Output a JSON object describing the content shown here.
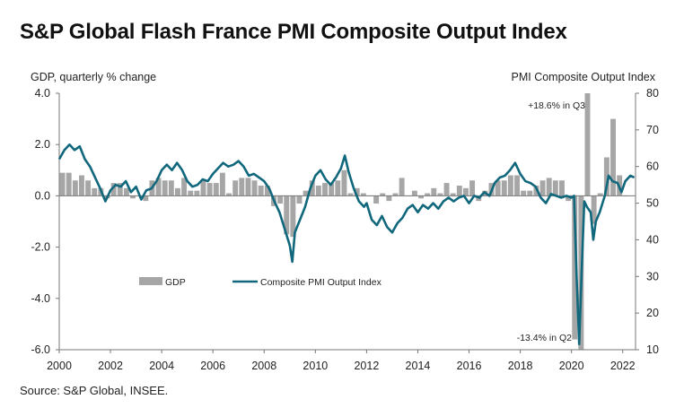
{
  "title": "S&P Global Flash France PMI Composite Output Index",
  "source": "Source: S&P Global, INSEE.",
  "chart_data": {
    "type": "bar+line",
    "left_axis_label": "GDP, quarterly % change",
    "right_axis_label": "PMI  Composite Output Index",
    "left_ylim": [
      -6.0,
      4.0
    ],
    "left_ticks": [
      "4.0",
      "2.0",
      "0.0",
      "-2.0",
      "-4.0",
      "-6.0"
    ],
    "left_tick_values": [
      4,
      2,
      0,
      -2,
      -4,
      -6
    ],
    "right_ylim": [
      10,
      80
    ],
    "right_ticks": [
      "80",
      "70",
      "60",
      "50",
      "40",
      "30",
      "20",
      "10"
    ],
    "right_tick_values": [
      80,
      70,
      60,
      50,
      40,
      30,
      20,
      10
    ],
    "x_range": [
      2000,
      2022.5
    ],
    "x_ticks": [
      "2000",
      "2002",
      "2004",
      "2006",
      "2008",
      "2010",
      "2012",
      "2014",
      "2016",
      "2018",
      "2020",
      "2022"
    ],
    "x_tick_values": [
      2000,
      2002,
      2004,
      2006,
      2008,
      2010,
      2012,
      2014,
      2016,
      2018,
      2020,
      2022
    ],
    "legend": [
      {
        "name": "GDP",
        "kind": "bar",
        "color": "#a6a6a6"
      },
      {
        "name": "Composite PMI Output Index",
        "kind": "line",
        "color": "#11687d"
      }
    ],
    "annotations": [
      "+18.6% in Q3",
      "-13.4% in Q2"
    ],
    "gdp_series": {
      "name": "GDP",
      "axis": "left",
      "color": "#a6a6a6",
      "quarters": [
        [
          2000.0,
          0.9
        ],
        [
          2000.25,
          0.9
        ],
        [
          2000.5,
          0.6
        ],
        [
          2000.75,
          0.8
        ],
        [
          2001.0,
          0.6
        ],
        [
          2001.25,
          0.3
        ],
        [
          2001.5,
          0.3
        ],
        [
          2001.75,
          -0.1
        ],
        [
          2002.0,
          0.5
        ],
        [
          2002.25,
          0.5
        ],
        [
          2002.5,
          0.3
        ],
        [
          2002.75,
          -0.1
        ],
        [
          2003.0,
          0.0
        ],
        [
          2003.25,
          -0.2
        ],
        [
          2003.5,
          0.6
        ],
        [
          2003.75,
          0.7
        ],
        [
          2004.0,
          0.6
        ],
        [
          2004.25,
          0.6
        ],
        [
          2004.5,
          0.3
        ],
        [
          2004.75,
          0.7
        ],
        [
          2005.0,
          0.2
        ],
        [
          2005.25,
          0.2
        ],
        [
          2005.5,
          0.6
        ],
        [
          2005.75,
          0.5
        ],
        [
          2006.0,
          0.5
        ],
        [
          2006.25,
          0.9
        ],
        [
          2006.5,
          0.1
        ],
        [
          2006.75,
          0.6
        ],
        [
          2007.0,
          0.7
        ],
        [
          2007.25,
          0.7
        ],
        [
          2007.5,
          0.6
        ],
        [
          2007.75,
          0.4
        ],
        [
          2008.0,
          0.4
        ],
        [
          2008.25,
          -0.4
        ],
        [
          2008.5,
          -0.3
        ],
        [
          2008.75,
          -1.5
        ],
        [
          2009.0,
          -1.6
        ],
        [
          2009.25,
          -0.3
        ],
        [
          2009.5,
          0.2
        ],
        [
          2009.75,
          0.6
        ],
        [
          2010.0,
          0.4
        ],
        [
          2010.25,
          0.5
        ],
        [
          2010.5,
          0.5
        ],
        [
          2010.75,
          0.6
        ],
        [
          2011.0,
          1.0
        ],
        [
          2011.25,
          0.1
        ],
        [
          2011.5,
          0.3
        ],
        [
          2011.75,
          0.1
        ],
        [
          2012.0,
          0.0
        ],
        [
          2012.25,
          -0.3
        ],
        [
          2012.5,
          0.1
        ],
        [
          2012.75,
          -0.2
        ],
        [
          2013.0,
          0.1
        ],
        [
          2013.25,
          0.7
        ],
        [
          2013.5,
          0.0
        ],
        [
          2013.75,
          0.2
        ],
        [
          2014.0,
          -0.1
        ],
        [
          2014.25,
          0.1
        ],
        [
          2014.5,
          0.3
        ],
        [
          2014.75,
          0.1
        ],
        [
          2015.0,
          0.5
        ],
        [
          2015.25,
          0.1
        ],
        [
          2015.5,
          0.4
        ],
        [
          2015.75,
          0.3
        ],
        [
          2016.0,
          0.6
        ],
        [
          2016.25,
          -0.2
        ],
        [
          2016.5,
          0.2
        ],
        [
          2016.75,
          0.5
        ],
        [
          2017.0,
          0.6
        ],
        [
          2017.25,
          0.6
        ],
        [
          2017.5,
          0.8
        ],
        [
          2017.75,
          0.8
        ],
        [
          2018.0,
          0.2
        ],
        [
          2018.25,
          0.2
        ],
        [
          2018.5,
          0.4
        ],
        [
          2018.75,
          0.6
        ],
        [
          2019.0,
          0.7
        ],
        [
          2019.25,
          0.6
        ],
        [
          2019.5,
          0.6
        ],
        [
          2019.75,
          -0.2
        ],
        [
          2020.0,
          -5.6
        ],
        [
          2020.25,
          -13.4
        ],
        [
          2020.5,
          18.6
        ],
        [
          2020.75,
          -1.1
        ],
        [
          2021.0,
          0.1
        ],
        [
          2021.25,
          1.5
        ],
        [
          2021.5,
          3.0
        ],
        [
          2021.75,
          0.8
        ],
        [
          2022.0,
          0.0
        ]
      ]
    },
    "pmi_series": {
      "name": "Composite PMI Output Index",
      "axis": "right",
      "color": "#11687d",
      "points": [
        [
          2000.0,
          62
        ],
        [
          2000.2,
          64.5
        ],
        [
          2000.4,
          66
        ],
        [
          2000.6,
          64.5
        ],
        [
          2000.8,
          65.5
        ],
        [
          2001.0,
          62
        ],
        [
          2001.2,
          60
        ],
        [
          2001.4,
          57
        ],
        [
          2001.6,
          54
        ],
        [
          2001.8,
          50.5
        ],
        [
          2002.0,
          53.5
        ],
        [
          2002.2,
          55
        ],
        [
          2002.4,
          54.5
        ],
        [
          2002.6,
          56
        ],
        [
          2002.8,
          53
        ],
        [
          2003.0,
          54.5
        ],
        [
          2003.2,
          51
        ],
        [
          2003.4,
          53.5
        ],
        [
          2003.6,
          54
        ],
        [
          2003.8,
          56
        ],
        [
          2004.0,
          59
        ],
        [
          2004.2,
          60.5
        ],
        [
          2004.4,
          59
        ],
        [
          2004.6,
          61
        ],
        [
          2004.8,
          59
        ],
        [
          2005.0,
          56
        ],
        [
          2005.2,
          54.5
        ],
        [
          2005.4,
          55
        ],
        [
          2005.6,
          56.5
        ],
        [
          2005.8,
          56
        ],
        [
          2006.0,
          58
        ],
        [
          2006.2,
          59.5
        ],
        [
          2006.4,
          61
        ],
        [
          2006.6,
          60
        ],
        [
          2006.8,
          60.5
        ],
        [
          2007.0,
          61.5
        ],
        [
          2007.2,
          60
        ],
        [
          2007.4,
          57.5
        ],
        [
          2007.6,
          58
        ],
        [
          2007.8,
          57
        ],
        [
          2008.0,
          56
        ],
        [
          2008.2,
          54
        ],
        [
          2008.4,
          50.5
        ],
        [
          2008.6,
          47.5
        ],
        [
          2008.8,
          43
        ],
        [
          2009.0,
          38.5
        ],
        [
          2009.1,
          34
        ],
        [
          2009.2,
          42
        ],
        [
          2009.4,
          45.5
        ],
        [
          2009.6,
          49
        ],
        [
          2009.8,
          54
        ],
        [
          2010.0,
          57.5
        ],
        [
          2010.2,
          59
        ],
        [
          2010.4,
          56.5
        ],
        [
          2010.6,
          55
        ],
        [
          2010.8,
          57
        ],
        [
          2011.0,
          59.5
        ],
        [
          2011.15,
          63
        ],
        [
          2011.3,
          58.5
        ],
        [
          2011.5,
          54
        ],
        [
          2011.7,
          50.5
        ],
        [
          2011.9,
          49
        ],
        [
          2012.0,
          50
        ],
        [
          2012.2,
          45.5
        ],
        [
          2012.4,
          44
        ],
        [
          2012.6,
          46.5
        ],
        [
          2012.8,
          43.5
        ],
        [
          2013.0,
          42
        ],
        [
          2013.2,
          44.5
        ],
        [
          2013.4,
          46
        ],
        [
          2013.6,
          48.5
        ],
        [
          2013.8,
          49.5
        ],
        [
          2014.0,
          47.5
        ],
        [
          2014.2,
          49.5
        ],
        [
          2014.4,
          48.5
        ],
        [
          2014.6,
          50
        ],
        [
          2014.8,
          48.5
        ],
        [
          2015.0,
          50.5
        ],
        [
          2015.2,
          51.5
        ],
        [
          2015.4,
          50.5
        ],
        [
          2015.6,
          51.5
        ],
        [
          2015.8,
          52
        ],
        [
          2016.0,
          50
        ],
        [
          2016.2,
          52
        ],
        [
          2016.4,
          51.5
        ],
        [
          2016.6,
          53
        ],
        [
          2016.8,
          52
        ],
        [
          2017.0,
          55.5
        ],
        [
          2017.2,
          57
        ],
        [
          2017.4,
          57.5
        ],
        [
          2017.6,
          59
        ],
        [
          2017.8,
          61
        ],
        [
          2018.0,
          58
        ],
        [
          2018.2,
          56
        ],
        [
          2018.4,
          55.5
        ],
        [
          2018.6,
          54.5
        ],
        [
          2018.8,
          51.5
        ],
        [
          2019.0,
          50
        ],
        [
          2019.2,
          52.5
        ],
        [
          2019.4,
          52
        ],
        [
          2019.6,
          51.5
        ],
        [
          2019.8,
          52
        ],
        [
          2020.0,
          51.5
        ],
        [
          2020.1,
          52
        ],
        [
          2020.2,
          30
        ],
        [
          2020.3,
          11.5
        ],
        [
          2020.4,
          32
        ],
        [
          2020.5,
          50.5
        ],
        [
          2020.6,
          49
        ],
        [
          2020.75,
          47.5
        ],
        [
          2020.85,
          40
        ],
        [
          2020.95,
          45
        ],
        [
          2021.1,
          47.5
        ],
        [
          2021.3,
          52
        ],
        [
          2021.45,
          57.5
        ],
        [
          2021.6,
          56
        ],
        [
          2021.8,
          55.5
        ],
        [
          2021.95,
          53
        ],
        [
          2022.1,
          56
        ],
        [
          2022.3,
          57.5
        ],
        [
          2022.45,
          57
        ]
      ]
    }
  }
}
